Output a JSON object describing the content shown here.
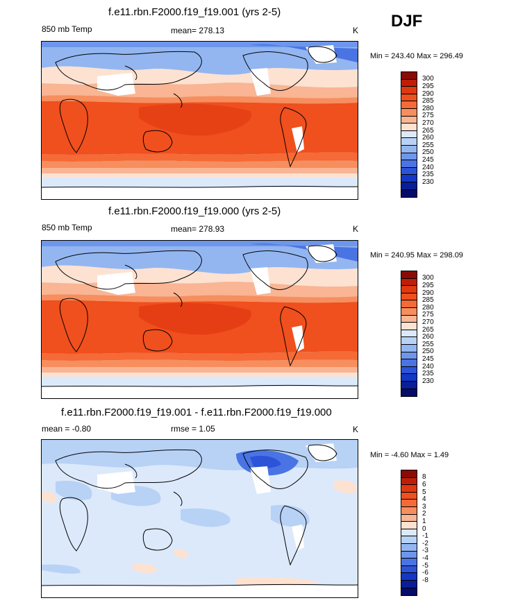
{
  "season": "DJF",
  "panels": [
    {
      "title": "f.e11.rbn.F2000.f19_f19.001 (yrs 2-5)",
      "left": "850 mb Temp",
      "center": "mean= 278.13",
      "units": "K",
      "minmax": "Min = 243.40 Max = 296.49"
    },
    {
      "title": "f.e11.rbn.F2000.f19_f19.000 (yrs 2-5)",
      "left": "850 mb Temp",
      "center": "mean= 278.93",
      "units": "K",
      "minmax": "Min = 240.95 Max = 298.09"
    },
    {
      "title": "f.e11.rbn.F2000.f19_f19.001 - f.e11.rbn.F2000.f19_f19.000",
      "left": "mean =  -0.80",
      "center": "rmse =   1.05",
      "units": "K",
      "minmax": "Min =  -4.60 Max =   1.49"
    }
  ],
  "legends": {
    "temp": {
      "labels": [
        "300",
        "295",
        "290",
        "285",
        "280",
        "275",
        "270",
        "265",
        "260",
        "255",
        "250",
        "245",
        "240",
        "235",
        "230"
      ],
      "colors": [
        "#8b0a05",
        "#c01d08",
        "#e0380f",
        "#f04f1e",
        "#f56a36",
        "#f78e5e",
        "#f9b594",
        "#fde2d2",
        "#dce9fb",
        "#b8d2f6",
        "#93b6f1",
        "#6e96eb",
        "#4a74e3",
        "#2c53d8",
        "#1337c6",
        "#0a1e98",
        "#050c6a"
      ]
    },
    "diff": {
      "labels": [
        "8",
        "6",
        "5",
        "4",
        "3",
        "2",
        "1",
        "0",
        "-1",
        "-2",
        "-3",
        "-4",
        "-5",
        "-6",
        "-8"
      ],
      "colors": [
        "#8b0a05",
        "#c01d08",
        "#e0380f",
        "#f04f1e",
        "#f56a36",
        "#f78e5e",
        "#f9b594",
        "#fde2d2",
        "#dce9fb",
        "#b8d2f6",
        "#93b6f1",
        "#6e96eb",
        "#4a74e3",
        "#2c53d8",
        "#1337c6",
        "#0a1e98",
        "#050c6a"
      ]
    }
  },
  "chart_data": [
    {
      "type": "heatmap",
      "title": "f.e11.rbn.F2000.f19_f19.001 (yrs 2-5)",
      "variable": "850 mb Temp",
      "units": "K",
      "mean": 278.13,
      "min": 243.4,
      "max": 296.49,
      "levels": [
        230,
        235,
        240,
        245,
        250,
        255,
        260,
        265,
        270,
        275,
        280,
        285,
        290,
        295,
        300
      ]
    },
    {
      "type": "heatmap",
      "title": "f.e11.rbn.F2000.f19_f19.000 (yrs 2-5)",
      "variable": "850 mb Temp",
      "units": "K",
      "mean": 278.93,
      "min": 240.95,
      "max": 298.09,
      "levels": [
        230,
        235,
        240,
        245,
        250,
        255,
        260,
        265,
        270,
        275,
        280,
        285,
        290,
        295,
        300
      ]
    },
    {
      "type": "heatmap",
      "title": "f.e11.rbn.F2000.f19_f19.001 - f.e11.rbn.F2000.f19_f19.000",
      "units": "K",
      "mean": -0.8,
      "rmse": 1.05,
      "min": -4.6,
      "max": 1.49,
      "levels": [
        -8,
        -6,
        -5,
        -4,
        -3,
        -2,
        -1,
        0,
        1,
        2,
        3,
        4,
        5,
        6,
        8
      ]
    }
  ]
}
